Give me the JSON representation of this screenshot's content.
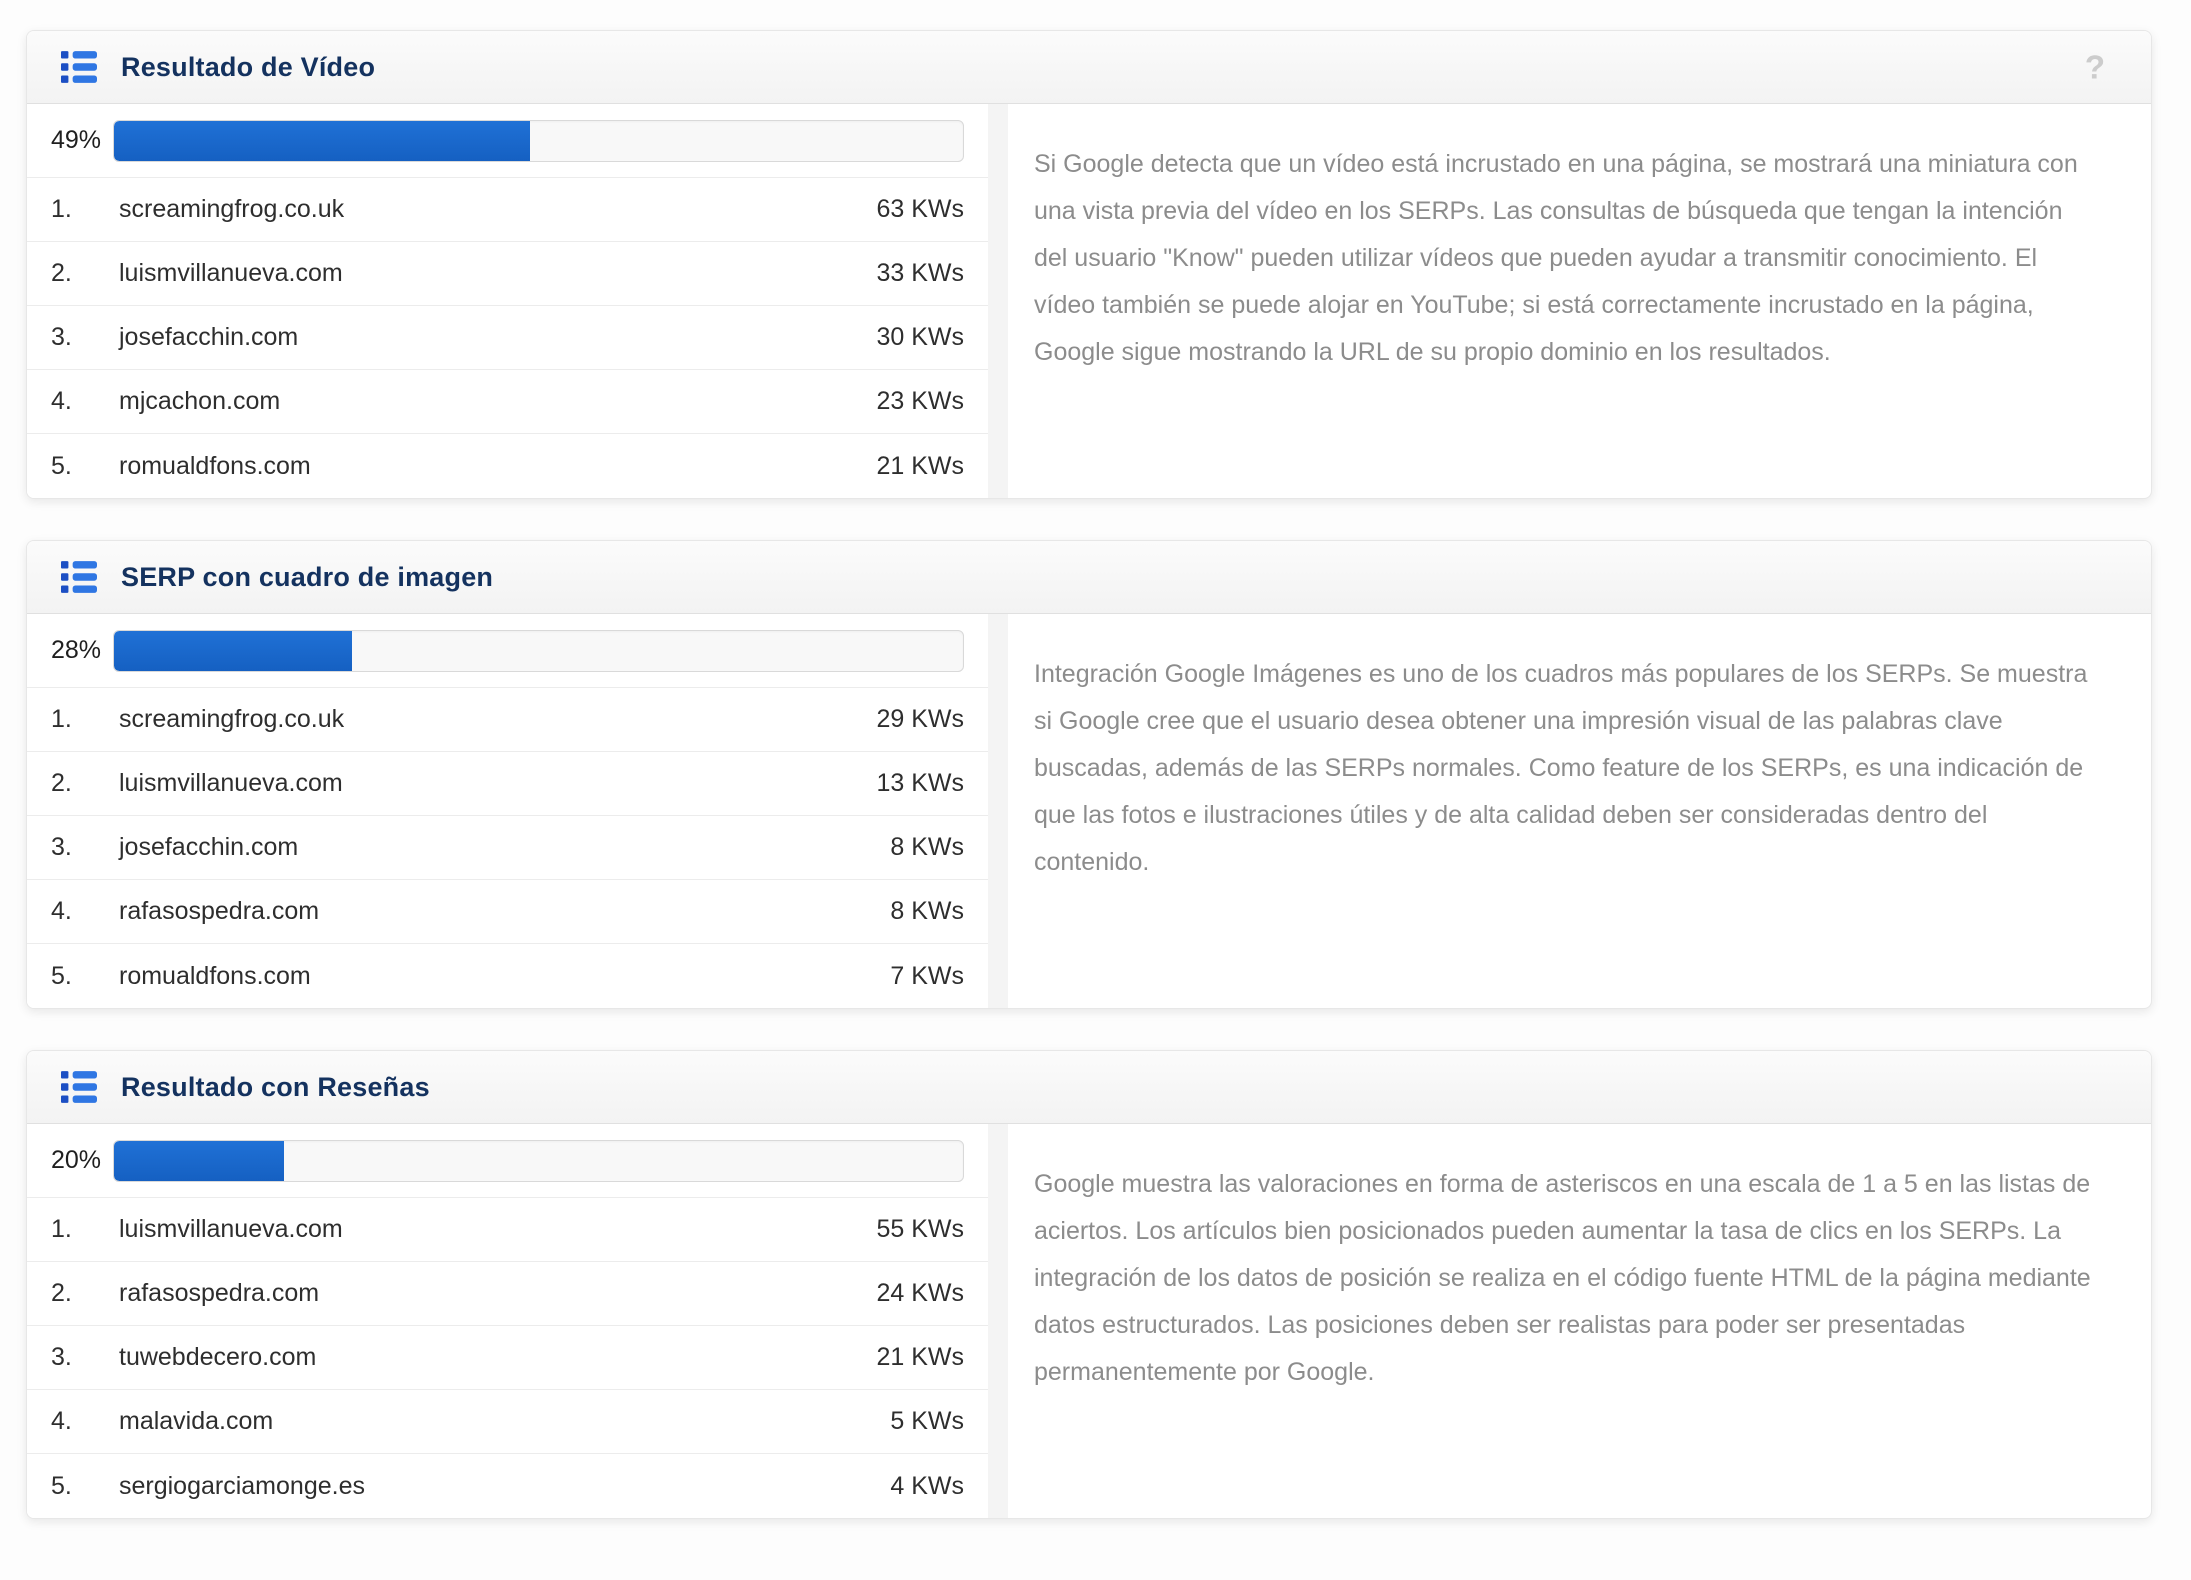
{
  "panels": [
    {
      "title": "Resultado de Vídeo",
      "icon": "list-icon",
      "show_help": true,
      "help_glyph": "?",
      "percent": "49%",
      "percent_value": 49,
      "rows": [
        {
          "rank": "1.",
          "domain": "screamingfrog.co.uk",
          "kws": "63 KWs"
        },
        {
          "rank": "2.",
          "domain": "luismvillanueva.com",
          "kws": "33 KWs"
        },
        {
          "rank": "3.",
          "domain": "josefacchin.com",
          "kws": "30 KWs"
        },
        {
          "rank": "4.",
          "domain": "mjcachon.com",
          "kws": "23 KWs"
        },
        {
          "rank": "5.",
          "domain": "romualdfons.com",
          "kws": "21 KWs"
        }
      ],
      "description": "Si Google detecta que un vídeo está incrustado en una página, se mostrará una miniatura con una vista previa del vídeo en los SERPs. Las consultas de búsqueda que tengan la intención del usuario \"Know\" pueden utilizar vídeos que pueden ayudar a transmitir conocimiento. El vídeo también se puede alojar en YouTube; si está correctamente incrustado en la página, Google sigue mostrando la URL de su propio dominio en los resultados."
    },
    {
      "title": "SERP con cuadro de imagen",
      "icon": "list-icon",
      "show_help": false,
      "help_glyph": "?",
      "percent": "28%",
      "percent_value": 28,
      "rows": [
        {
          "rank": "1.",
          "domain": "screamingfrog.co.uk",
          "kws": "29 KWs"
        },
        {
          "rank": "2.",
          "domain": "luismvillanueva.com",
          "kws": "13 KWs"
        },
        {
          "rank": "3.",
          "domain": "josefacchin.com",
          "kws": "8 KWs"
        },
        {
          "rank": "4.",
          "domain": "rafasospedra.com",
          "kws": "8 KWs"
        },
        {
          "rank": "5.",
          "domain": "romualdfons.com",
          "kws": "7 KWs"
        }
      ],
      "description": "Integración Google Imágenes es uno de los cuadros más populares de los SERPs. Se muestra si Google cree que el usuario desea obtener una impresión visual de las palabras clave buscadas, además de las SERPs normales. Como feature de los SERPs, es una indicación de que las fotos e ilustraciones útiles y de alta calidad deben ser consideradas dentro del contenido."
    },
    {
      "title": "Resultado con Reseñas",
      "icon": "list-icon",
      "show_help": false,
      "help_glyph": "?",
      "percent": "20%",
      "percent_value": 20,
      "rows": [
        {
          "rank": "1.",
          "domain": "luismvillanueva.com",
          "kws": "55 KWs"
        },
        {
          "rank": "2.",
          "domain": "rafasospedra.com",
          "kws": "24 KWs"
        },
        {
          "rank": "3.",
          "domain": "tuwebdecero.com",
          "kws": "21 KWs"
        },
        {
          "rank": "4.",
          "domain": "malavida.com",
          "kws": "5 KWs"
        },
        {
          "rank": "5.",
          "domain": "sergiogarciamonge.es",
          "kws": "4 KWs"
        }
      ],
      "description": "Google muestra las valoraciones en forma de asteriscos en una escala de 1 a 5 en las listas de aciertos. Los artículos bien posicionados pueden aumentar la tasa de clics en los SERPs. La integración de los datos de posición se realiza en el código fuente HTML de la página mediante datos estructurados. Las posiciones deben ser realistas para poder ser presentadas permanentemente por Google."
    }
  ],
  "colors": {
    "accent_bar": "#1b67cc",
    "title_navy": "#14325f",
    "icon_square_blue": "#1c4fc4",
    "icon_bar_blue": "#2f76e3",
    "paragraph_gray": "#8c8c8c",
    "help_gray": "#cccccc"
  }
}
